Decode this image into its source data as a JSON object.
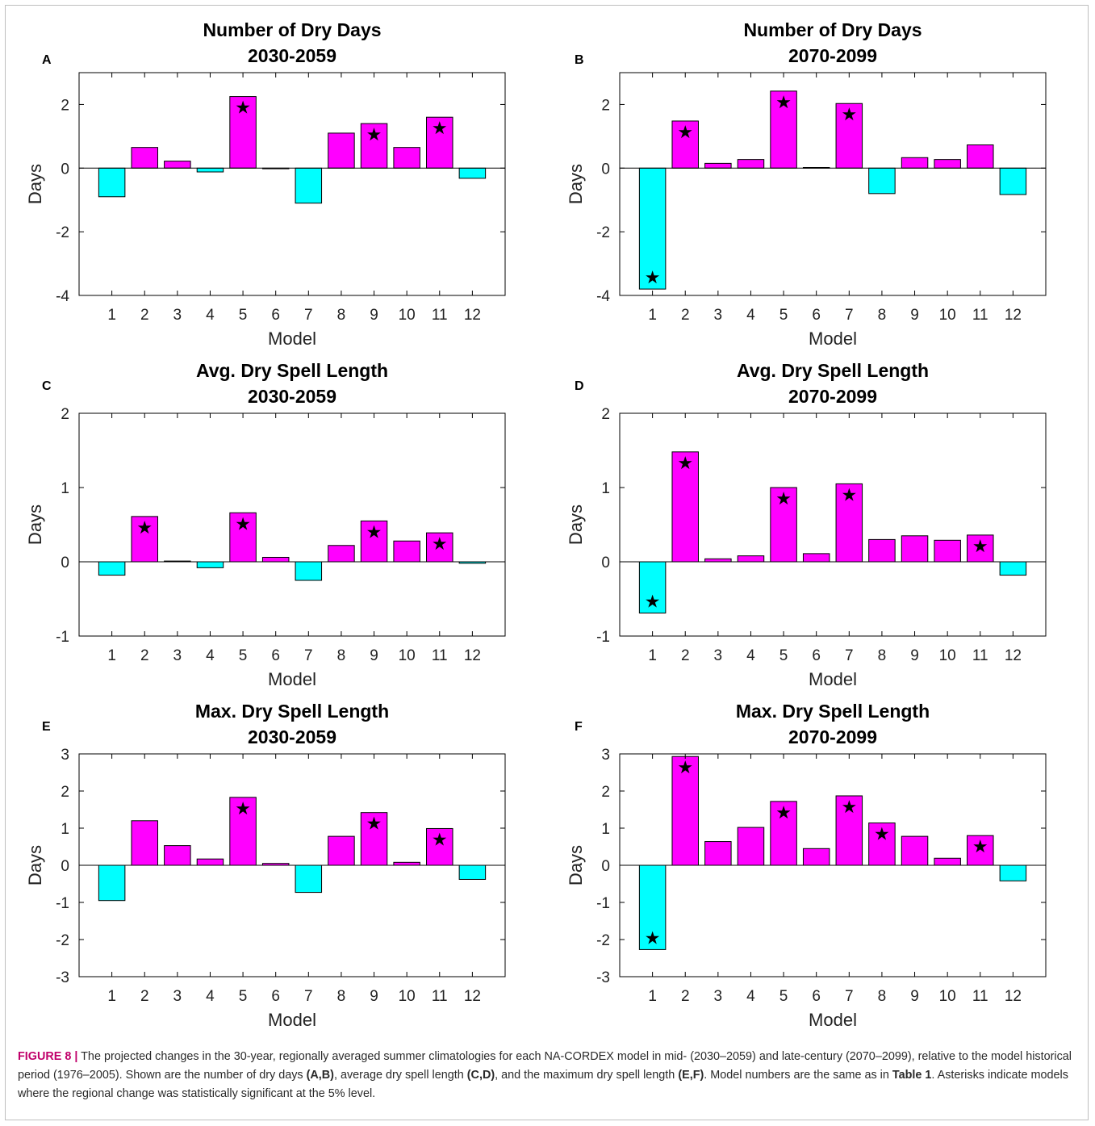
{
  "caption": {
    "label": "FIGURE 8 |",
    "parts": [
      {
        "t": " The projected changes in the 30-year, regionally averaged summer climatologies for each NA-CORDEX model in mid- (2030–2059) and late-century (2070–2099), relative to the model historical period (1976–2005). Shown are the number of dry days ",
        "b": false
      },
      {
        "t": "(A,B)",
        "b": true
      },
      {
        "t": ", average dry spell length ",
        "b": false
      },
      {
        "t": "(C,D)",
        "b": true
      },
      {
        "t": ", and the maximum dry spell length ",
        "b": false
      },
      {
        "t": "(E,F)",
        "b": true
      },
      {
        "t": ". Model numbers are the same as in ",
        "b": false
      },
      {
        "t": "Table 1",
        "b": true
      },
      {
        "t": ". Asterisks indicate models where the regional change was statistically significant at the 5% level.",
        "b": false
      }
    ]
  },
  "colors": {
    "positive": "#ff00ff",
    "negative": "#00ffff",
    "frame": "#000000"
  },
  "chart_data": [
    {
      "panel": "A",
      "type": "bar",
      "title": "Number of Dry Days",
      "subtitle": "2030-2059",
      "xlabel": "Model",
      "ylabel": "Days",
      "ylim": [
        -4,
        3
      ],
      "yticks": [
        -4,
        -2,
        0,
        2
      ],
      "categories": [
        "1",
        "2",
        "3",
        "4",
        "5",
        "6",
        "7",
        "8",
        "9",
        "10",
        "11",
        "12"
      ],
      "values": [
        -0.9,
        0.65,
        0.22,
        -0.12,
        2.25,
        -0.02,
        -1.1,
        1.1,
        1.4,
        0.65,
        1.6,
        -0.32
      ],
      "significant": [
        false,
        false,
        false,
        false,
        true,
        false,
        false,
        false,
        true,
        false,
        true,
        false
      ]
    },
    {
      "panel": "B",
      "type": "bar",
      "title": "Number of Dry Days",
      "subtitle": "2070-2099",
      "xlabel": "Model",
      "ylabel": "Days",
      "ylim": [
        -4,
        3
      ],
      "yticks": [
        -4,
        -2,
        0,
        2
      ],
      "categories": [
        "1",
        "2",
        "3",
        "4",
        "5",
        "6",
        "7",
        "8",
        "9",
        "10",
        "11",
        "12"
      ],
      "values": [
        -3.8,
        1.48,
        0.15,
        0.27,
        2.42,
        0.02,
        2.03,
        -0.8,
        0.33,
        0.27,
        0.73,
        -0.83
      ],
      "significant": [
        true,
        true,
        false,
        false,
        true,
        false,
        true,
        false,
        false,
        false,
        false,
        false
      ]
    },
    {
      "panel": "C",
      "type": "bar",
      "title": "Avg. Dry Spell Length",
      "subtitle": "2030-2059",
      "xlabel": "Model",
      "ylabel": "Days",
      "ylim": [
        -1,
        2
      ],
      "yticks": [
        -1,
        0,
        1,
        2
      ],
      "categories": [
        "1",
        "2",
        "3",
        "4",
        "5",
        "6",
        "7",
        "8",
        "9",
        "10",
        "11",
        "12"
      ],
      "values": [
        -0.18,
        0.61,
        0.01,
        -0.08,
        0.66,
        0.06,
        -0.25,
        0.22,
        0.55,
        0.28,
        0.39,
        -0.02
      ],
      "significant": [
        false,
        true,
        false,
        false,
        true,
        false,
        false,
        false,
        true,
        false,
        true,
        false
      ]
    },
    {
      "panel": "D",
      "type": "bar",
      "title": "Avg. Dry Spell Length",
      "subtitle": "2070-2099",
      "xlabel": "Model",
      "ylabel": "Days",
      "ylim": [
        -1,
        2
      ],
      "yticks": [
        -1,
        0,
        1,
        2
      ],
      "categories": [
        "1",
        "2",
        "3",
        "4",
        "5",
        "6",
        "7",
        "8",
        "9",
        "10",
        "11",
        "12"
      ],
      "values": [
        -0.69,
        1.48,
        0.04,
        0.08,
        1.0,
        0.11,
        1.05,
        0.3,
        0.35,
        0.29,
        0.36,
        -0.18
      ],
      "significant": [
        true,
        true,
        false,
        false,
        true,
        false,
        true,
        false,
        false,
        false,
        true,
        false
      ]
    },
    {
      "panel": "E",
      "type": "bar",
      "title": "Max. Dry Spell Length",
      "subtitle": "2030-2059",
      "xlabel": "Model",
      "ylabel": "Days",
      "ylim": [
        -3,
        3
      ],
      "yticks": [
        -3,
        -2,
        -1,
        0,
        1,
        2,
        3
      ],
      "categories": [
        "1",
        "2",
        "3",
        "4",
        "5",
        "6",
        "7",
        "8",
        "9",
        "10",
        "11",
        "12"
      ],
      "values": [
        -0.95,
        1.2,
        0.53,
        0.17,
        1.83,
        0.05,
        -0.73,
        0.78,
        1.42,
        0.08,
        0.99,
        -0.38
      ],
      "significant": [
        false,
        false,
        false,
        false,
        true,
        false,
        false,
        false,
        true,
        false,
        true,
        false
      ]
    },
    {
      "panel": "F",
      "type": "bar",
      "title": "Max. Dry Spell Length",
      "subtitle": "2070-2099",
      "xlabel": "Model",
      "ylabel": "Days",
      "ylim": [
        -3,
        3
      ],
      "yticks": [
        -3,
        -2,
        -1,
        0,
        1,
        2,
        3
      ],
      "categories": [
        "1",
        "2",
        "3",
        "4",
        "5",
        "6",
        "7",
        "8",
        "9",
        "10",
        "11",
        "12"
      ],
      "values": [
        -2.27,
        2.93,
        0.64,
        1.02,
        1.72,
        0.45,
        1.87,
        1.14,
        0.78,
        0.19,
        0.8,
        -0.42
      ],
      "significant": [
        true,
        true,
        false,
        false,
        true,
        false,
        true,
        true,
        false,
        false,
        true,
        false
      ]
    }
  ]
}
